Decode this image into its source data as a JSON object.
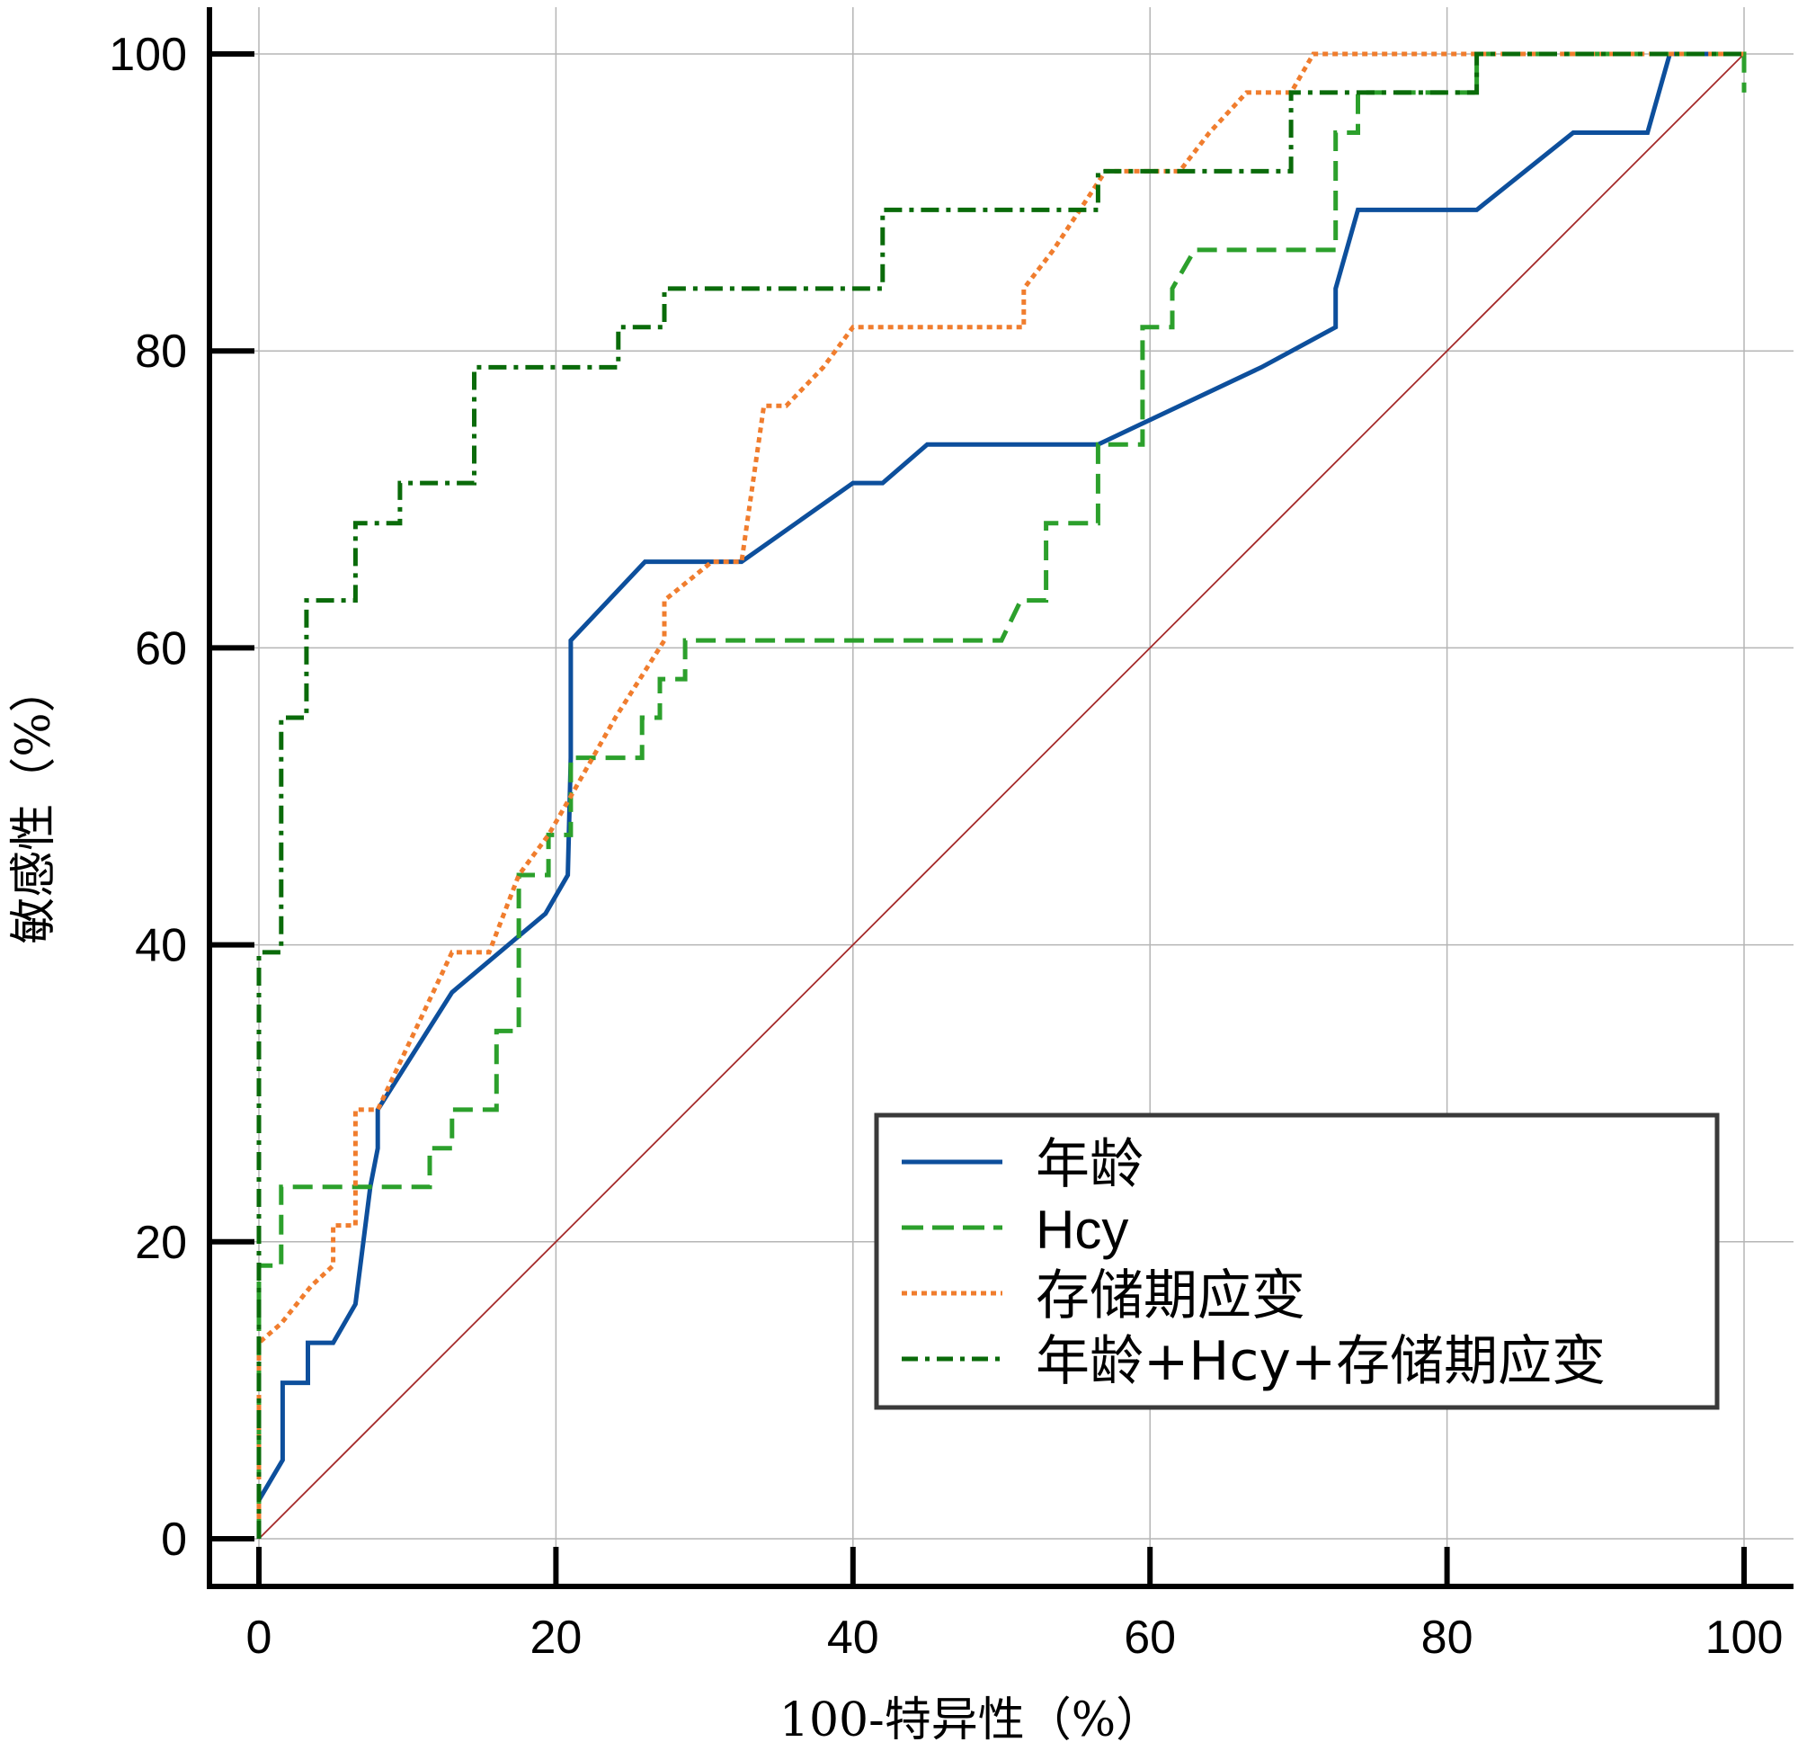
{
  "chart_data": {
    "type": "line",
    "xlabel": "100-特异性（%）",
    "ylabel": "敏感性（%）",
    "xlim": [
      0,
      100
    ],
    "ylim": [
      0,
      100
    ],
    "xticks": [
      0,
      20,
      40,
      60,
      80,
      100
    ],
    "yticks": [
      0,
      20,
      40,
      60,
      80,
      100
    ],
    "grid": true,
    "legend_position": "bottom-right",
    "reference_line": {
      "x": [
        0,
        100
      ],
      "y": [
        0,
        100
      ],
      "color": "#a52a2a"
    },
    "series": [
      {
        "name": "年龄",
        "style": "solid",
        "color": "#0d4f9c",
        "x": [
          0,
          0,
          1.6,
          1.6,
          3.3,
          3.3,
          5,
          6.5,
          7.5,
          8,
          8,
          13,
          19.3,
          20.8,
          21,
          21,
          26,
          32.5,
          40,
          42,
          45,
          56.5,
          67.5,
          72.5,
          72.5,
          74,
          82,
          88.5,
          93.5,
          95,
          100
        ],
        "y": [
          0,
          2.6,
          5.3,
          10.5,
          10.5,
          13.2,
          13.2,
          15.8,
          23.7,
          26.3,
          28.9,
          36.8,
          42.1,
          44.7,
          52.6,
          60.5,
          65.8,
          65.8,
          71.1,
          71.1,
          73.7,
          73.7,
          78.9,
          81.6,
          84.2,
          89.5,
          89.5,
          94.7,
          94.7,
          100,
          100
        ]
      },
      {
        "name": "Hcy",
        "style": "dashed",
        "color": "#2ca02c",
        "x": [
          0,
          0,
          1.5,
          1.5,
          11.5,
          11.5,
          13,
          13,
          16,
          16,
          17.5,
          17.5,
          19.5,
          19.5,
          21,
          21,
          25.8,
          25.8,
          27,
          27,
          28.7,
          28.7,
          50,
          51.3,
          53,
          53,
          56.5,
          56.5,
          59.5,
          59.5,
          61.5,
          61.5,
          63,
          72.5,
          72.5,
          74,
          74,
          82,
          82,
          100,
          100
        ],
        "y": [
          0,
          18.4,
          18.4,
          23.7,
          23.7,
          26.3,
          26.3,
          28.9,
          28.9,
          34.2,
          34.2,
          44.7,
          44.7,
          47.4,
          47.4,
          52.6,
          52.6,
          55.3,
          55.3,
          57.9,
          57.9,
          60.5,
          60.5,
          63.2,
          63.2,
          68.4,
          68.4,
          73.7,
          73.7,
          81.6,
          81.6,
          84.2,
          86.8,
          86.8,
          94.7,
          94.7,
          97.4,
          97.4,
          100,
          100,
          97.4
        ]
      },
      {
        "name": "存储期应变",
        "style": "dotted",
        "color": "#f07d2e",
        "x": [
          0,
          0,
          1.5,
          3.5,
          5,
          5,
          6.5,
          6.5,
          8,
          13,
          14.5,
          15.5,
          17.5,
          17.5,
          19.5,
          21,
          24,
          27.3,
          27.3,
          30.5,
          32.5,
          34,
          35.5,
          38,
          40,
          51.5,
          51.5,
          53.5,
          57,
          62,
          64,
          66.5,
          69.5,
          71,
          100
        ],
        "y": [
          0,
          13.2,
          14.5,
          17,
          18.4,
          21.1,
          21.1,
          28.9,
          28.9,
          39.5,
          39.5,
          39.5,
          44.7,
          44.7,
          47.4,
          50,
          55.3,
          60.5,
          63.2,
          65.8,
          65.8,
          76.3,
          76.3,
          78.9,
          81.6,
          81.6,
          84.2,
          86.8,
          92.1,
          92.1,
          94.7,
          97.4,
          97.4,
          100,
          100
        ]
      },
      {
        "name": "年龄+Hcy+存储期应变",
        "style": "dashdot",
        "color": "#0a6b0a",
        "x": [
          0,
          0,
          1.5,
          1.5,
          3.2,
          3.2,
          6.5,
          6.5,
          9.5,
          9.5,
          14.5,
          14.5,
          24.2,
          24.2,
          27.3,
          27.3,
          42,
          42,
          56.5,
          56.5,
          69.5,
          69.5,
          82,
          82,
          100
        ],
        "y": [
          0,
          39.5,
          39.5,
          55.3,
          55.3,
          63.2,
          63.2,
          68.4,
          68.4,
          71.1,
          71.1,
          78.9,
          78.9,
          81.6,
          81.6,
          84.2,
          84.2,
          89.5,
          89.5,
          92.1,
          92.1,
          97.4,
          97.4,
          100,
          100
        ]
      }
    ]
  }
}
